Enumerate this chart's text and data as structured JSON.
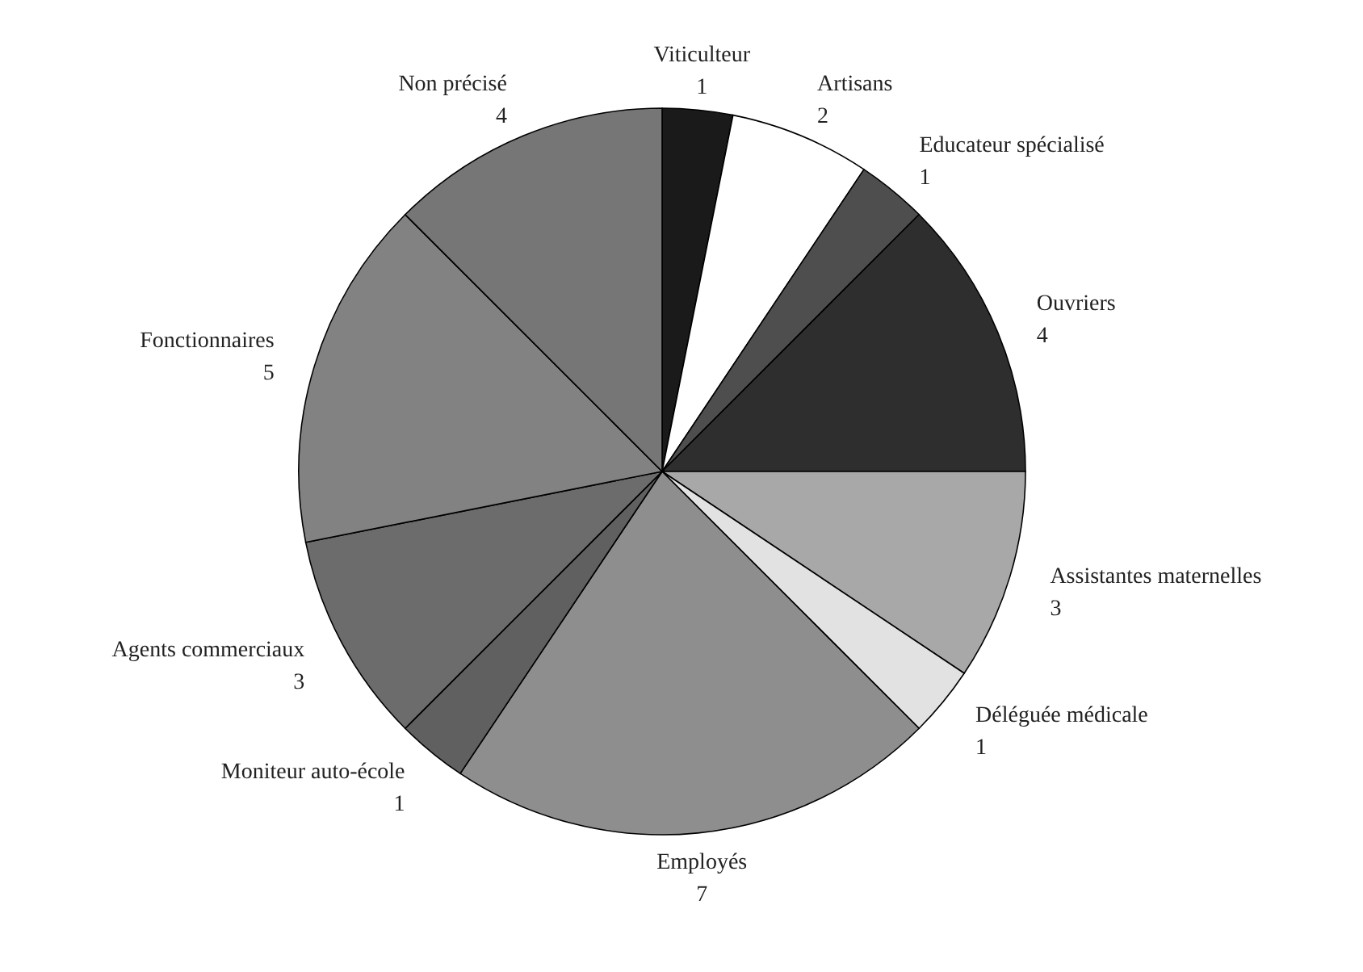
{
  "chart_data": {
    "type": "pie",
    "categories": [
      "Viticulteur",
      "Artisans",
      "Educateur spécialisé",
      "Ouvriers",
      "Assistantes maternelles",
      "Déléguée médicale",
      "Employés",
      "Moniteur auto-école",
      "Agents commerciaux",
      "Fonctionnaires",
      "Non précisé"
    ],
    "values": [
      1,
      2,
      1,
      4,
      3,
      1,
      7,
      1,
      3,
      5,
      4
    ],
    "colors": [
      "#1a1a1a",
      "#ffffff",
      "#4e4e4e",
      "#2e2e2e",
      "#a8a8a8",
      "#e2e2e2",
      "#8e8e8e",
      "#606060",
      "#6c6c6c",
      "#828282",
      "#767676"
    ],
    "data_labels": true
  }
}
